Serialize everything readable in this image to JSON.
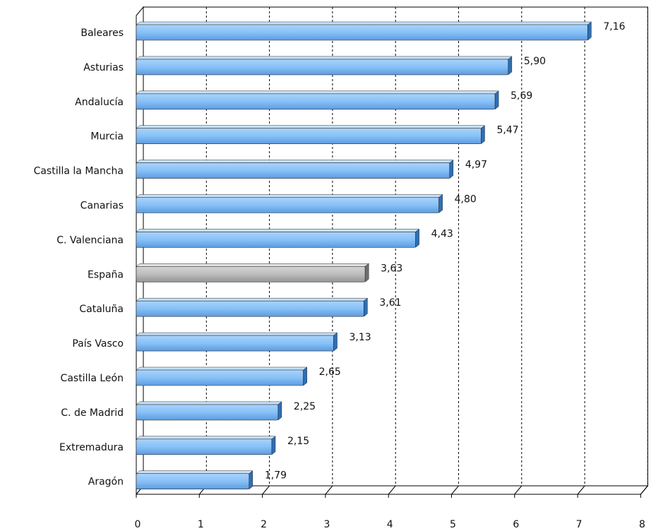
{
  "chart_data": {
    "type": "bar",
    "orientation": "horizontal",
    "categories": [
      "Baleares",
      "Asturias",
      "Andalucía",
      "Murcia",
      "Castilla la Mancha",
      "Canarias",
      "C. Valenciana",
      "España",
      "Cataluña",
      "País Vasco",
      "Castilla León",
      "C. de Madrid",
      "Extremadura",
      "Aragón"
    ],
    "values": [
      7.16,
      5.9,
      5.69,
      5.47,
      4.97,
      4.8,
      4.43,
      3.63,
      3.61,
      3.13,
      2.65,
      2.25,
      2.15,
      1.79
    ],
    "value_labels": [
      "7,16",
      "5,90",
      "5,69",
      "5,47",
      "4,97",
      "4,80",
      "4,43",
      "3,63",
      "3,61",
      "3,13",
      "2,65",
      "2,25",
      "2,15",
      "1,79"
    ],
    "highlight_category": "España",
    "xlim": [
      0,
      8
    ],
    "xticks": [
      "0",
      "1",
      "2",
      "3",
      "4",
      "5",
      "6",
      "7",
      "8"
    ],
    "grid": true,
    "bar_color": "#87c1f7",
    "highlight_color": "#bdbdbd",
    "title": "",
    "xlabel": "",
    "ylabel": ""
  }
}
